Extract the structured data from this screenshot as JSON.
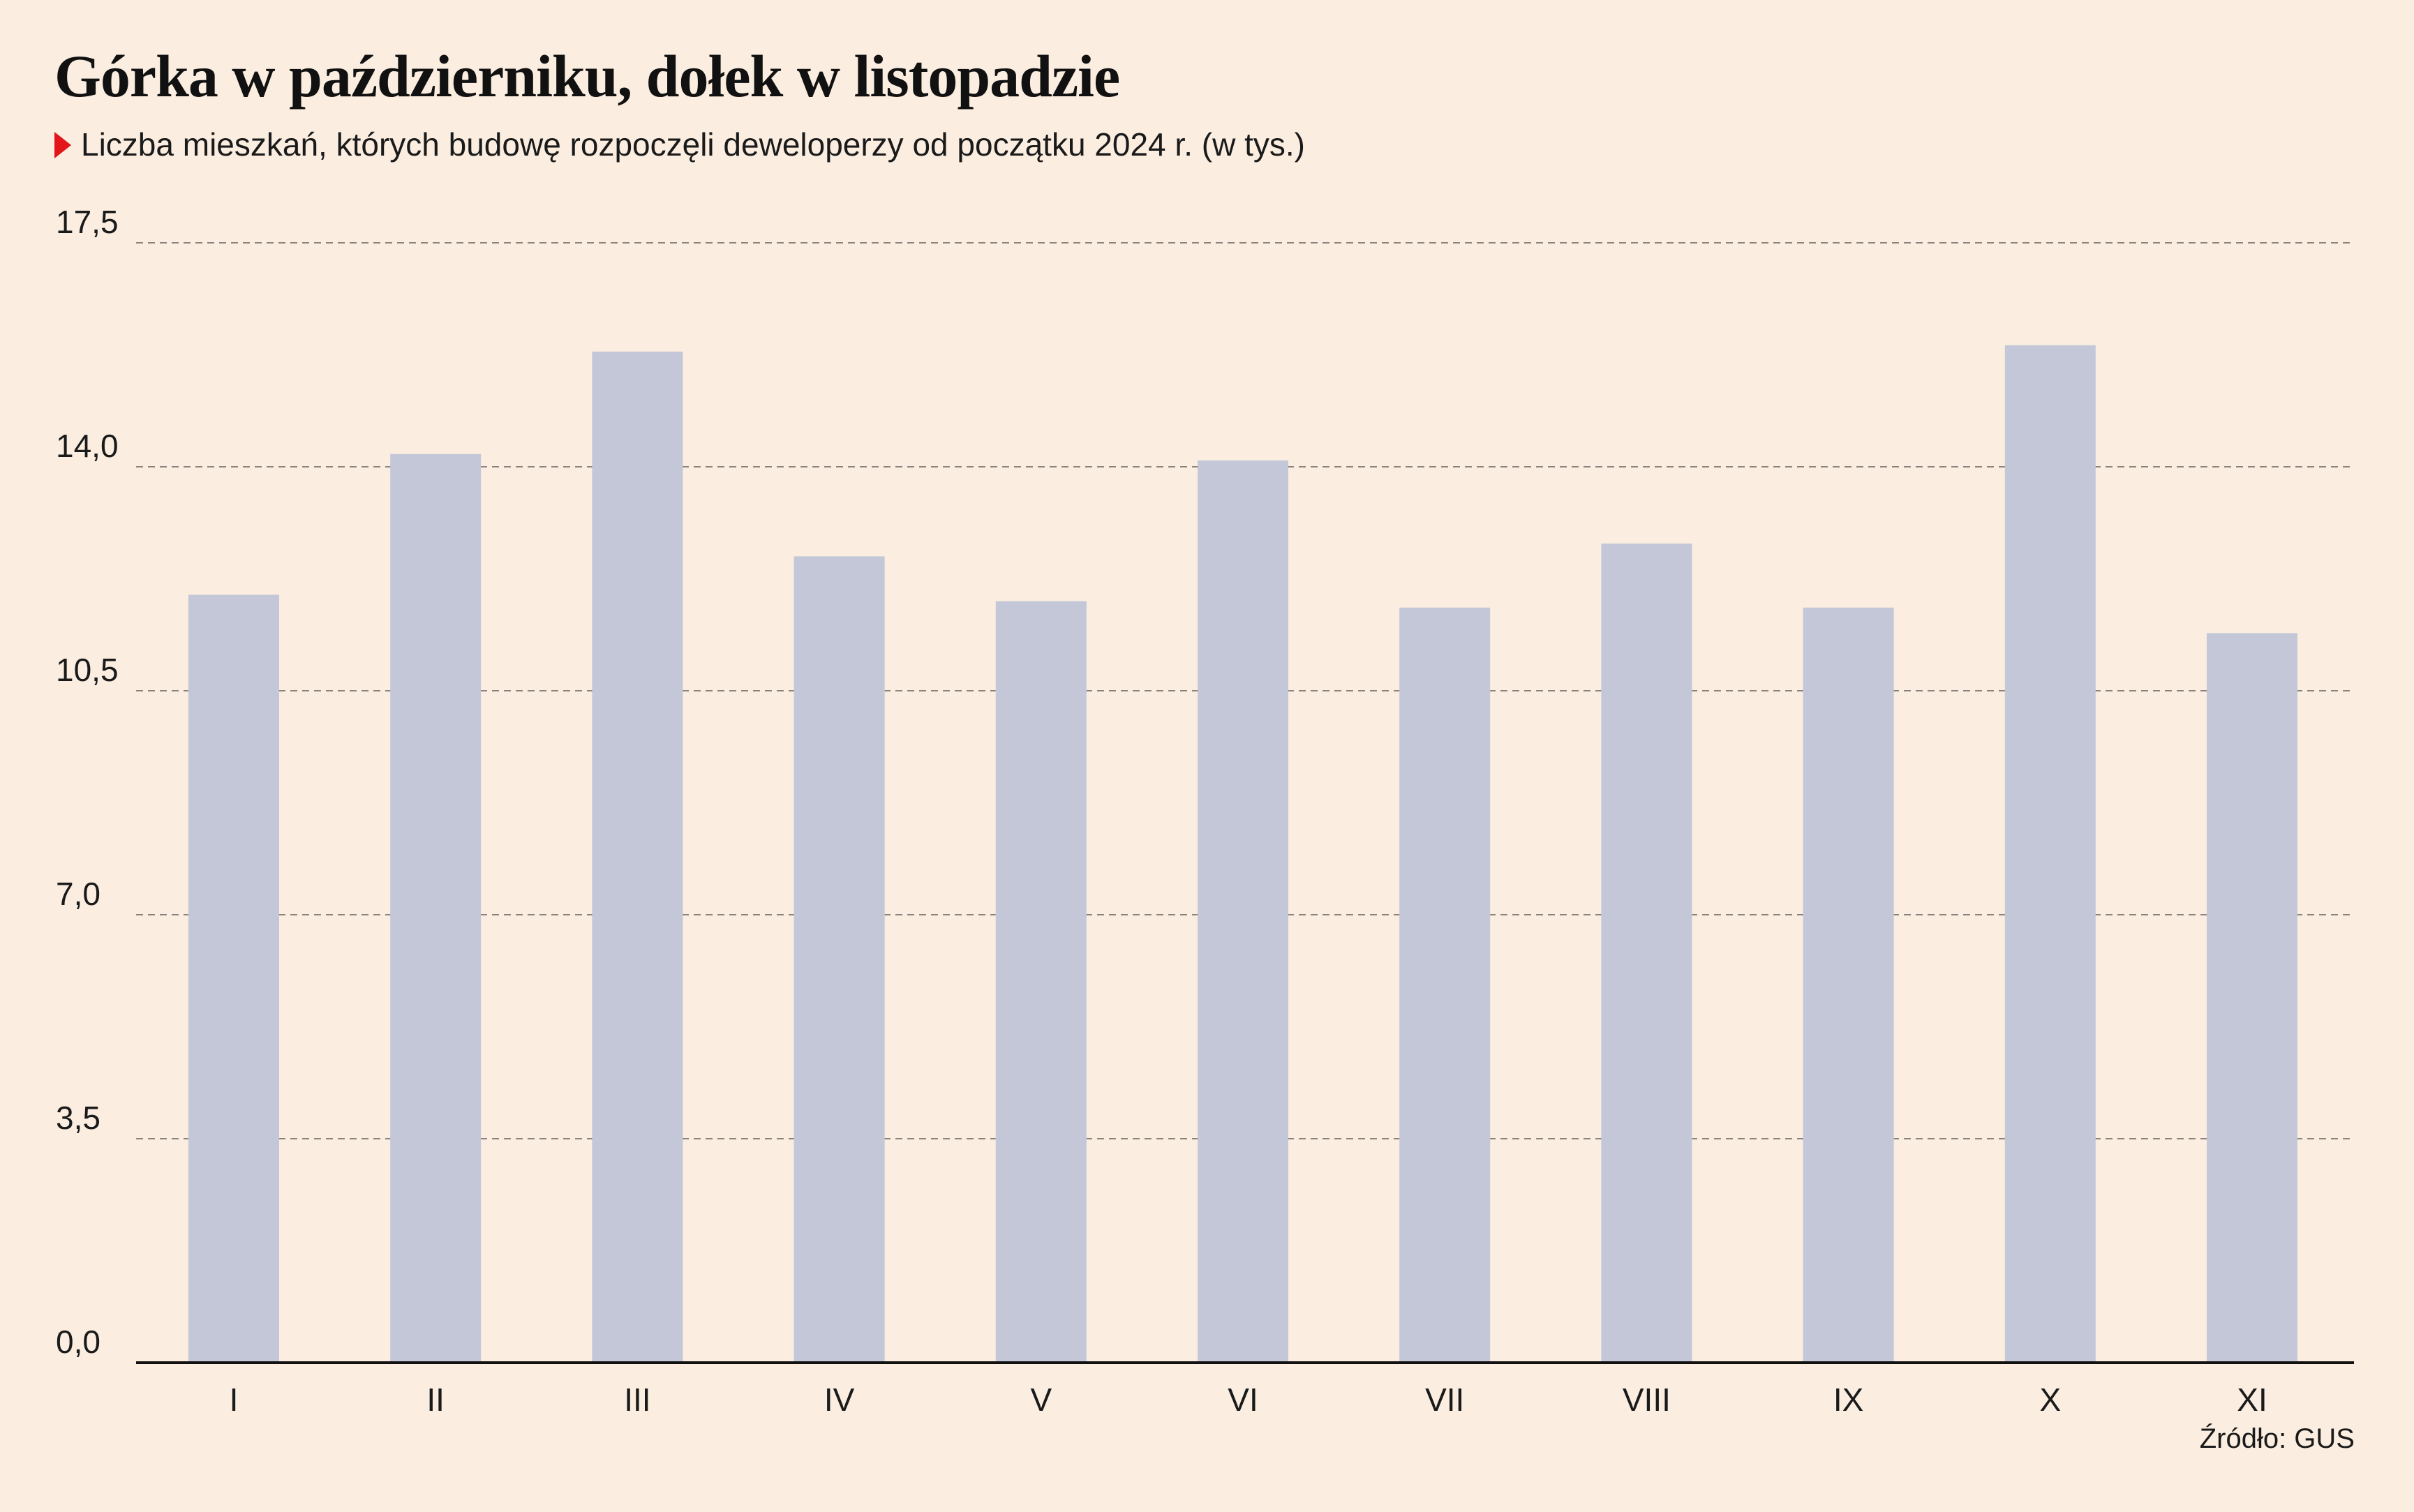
{
  "header": {
    "title": "Górka w październiku, dołek w listopadzie",
    "subtitle": "Liczba mieszkań, których budowę rozpoczęli deweloperzy od początku 2024 r. (w tys.)",
    "source": "Źródło: GUS"
  },
  "colors": {
    "background": "#fbeee1",
    "bar": "#c3c7d7",
    "axis": "#111111",
    "grid": "#8a8480",
    "marker": "#e3151a"
  },
  "chart_data": {
    "type": "bar",
    "title": "Górka w październiku, dołek w listopadzie",
    "subtitle": "Liczba mieszkań, których budowę rozpoczęli deweloperzy od początku 2024 r. (w tys.)",
    "xlabel": "",
    "ylabel": "",
    "categories": [
      "I",
      "II",
      "III",
      "IV",
      "V",
      "VI",
      "VII",
      "VIII",
      "IX",
      "X",
      "XI"
    ],
    "values": [
      12.0,
      14.2,
      15.8,
      12.6,
      11.9,
      14.1,
      11.8,
      12.8,
      11.8,
      15.9,
      11.4
    ],
    "ylim": [
      0,
      17.5
    ],
    "yticks": [
      "0,0",
      "3,5",
      "7,0",
      "10,5",
      "14,0",
      "17,5"
    ],
    "grid": true,
    "grid_style": "dashed",
    "legend": "none"
  }
}
